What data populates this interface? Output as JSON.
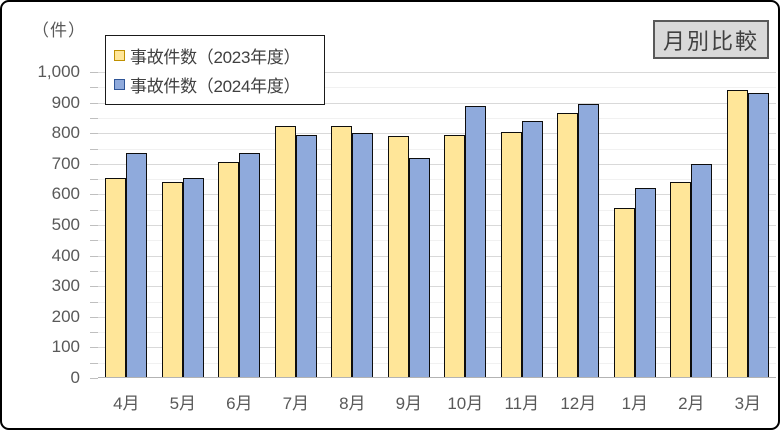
{
  "frame": {
    "unit_label": "（件）",
    "badge": "月別比較"
  },
  "chart_data": {
    "type": "bar",
    "title": "月別比較",
    "ylabel": "（件）",
    "xlabel": "",
    "ylim": [
      0,
      1000
    ],
    "y_major_step": 100,
    "y_minor_step": 50,
    "grid": true,
    "legend_position": "top-left",
    "categories": [
      "4月",
      "5月",
      "6月",
      "7月",
      "8月",
      "9月",
      "10月",
      "11月",
      "12月",
      "1月",
      "2月",
      "3月"
    ],
    "y_tick_labels": [
      "1,000",
      "900",
      "800",
      "700",
      "600",
      "500",
      "400",
      "300",
      "200",
      "100",
      "0"
    ],
    "series": [
      {
        "name": "事故件数（2023年度）",
        "color": "#FFE699",
        "marker_border": "#BF9000",
        "values": [
          655,
          640,
          705,
          825,
          825,
          790,
          795,
          805,
          865,
          555,
          640,
          940
        ]
      },
      {
        "name": "事故件数（2024年度）",
        "color": "#8FAADC",
        "marker_border": "#2F5597",
        "values": [
          735,
          655,
          735,
          795,
          800,
          720,
          890,
          840,
          895,
          620,
          700,
          930
        ]
      }
    ]
  },
  "colors": {
    "bar_border": "#0d0d0d",
    "grid_major": "#d9d9d9",
    "grid_minor": "#f1f1f1",
    "axis_line": "#b3b3b3",
    "tick": "#bfbfbf",
    "axis_text": "#595959",
    "legend_text": "#404040",
    "badge_bg": "#d9d9d9",
    "badge_border": "#595959",
    "frame_border": "#000000"
  }
}
